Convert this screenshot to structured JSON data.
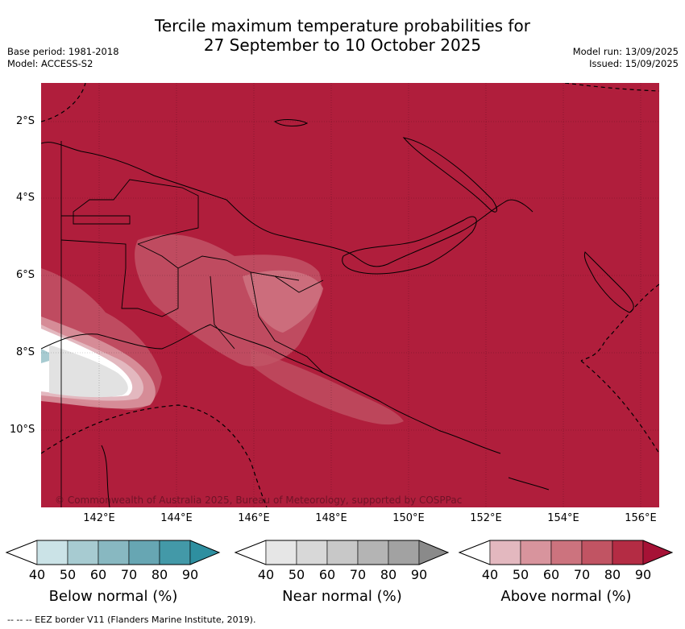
{
  "title": {
    "line1": "Tercile maximum temperature probabilities for",
    "line2": "27 September to 10 October 2025"
  },
  "meta": {
    "base_period": "Base period: 1981-2018",
    "model": "Model: ACCESS-S2",
    "model_run": "Model run: 13/09/2025",
    "issued": "Issued: 15/09/2025"
  },
  "map": {
    "background_color": "#b01e3c",
    "latitude_labels": [
      "2°S",
      "4°S",
      "6°S",
      "8°S",
      "10°S"
    ],
    "longitude_labels": [
      "142°E",
      "144°E",
      "146°E",
      "148°E",
      "150°E",
      "152°E",
      "154°E",
      "156°E"
    ],
    "copyright": "© Commonwealth of Australia 2025, Bureau of Meteorology, supported by COSPPac"
  },
  "colorbars": [
    {
      "label": "Below normal (%)",
      "ticks": [
        "40",
        "50",
        "60",
        "70",
        "80",
        "90"
      ],
      "colors": [
        "#ffffff",
        "#cbe3e7",
        "#a7cbd1",
        "#88b8c1",
        "#67a6b3",
        "#4399a8",
        "#2e8fa0"
      ]
    },
    {
      "label": "Near normal (%)",
      "ticks": [
        "40",
        "50",
        "60",
        "70",
        "80",
        "90"
      ],
      "colors": [
        "#ffffff",
        "#e6e6e6",
        "#d8d8d8",
        "#c8c8c8",
        "#b4b4b4",
        "#a2a2a2",
        "#8a8a8a"
      ]
    },
    {
      "label": "Above normal (%)",
      "ticks": [
        "40",
        "50",
        "60",
        "70",
        "80",
        "90"
      ],
      "colors": [
        "#ffffff",
        "#e3b8bf",
        "#d8949d",
        "#cc737e",
        "#c15463",
        "#b42c44",
        "#a61236"
      ]
    }
  ],
  "footer": {
    "legend": "-- -- -- EEZ border V11 (Flanders Marine Institute, 2019)."
  }
}
